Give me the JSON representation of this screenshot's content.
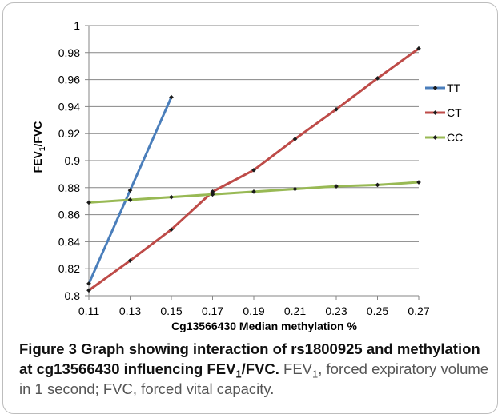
{
  "chart_data": {
    "type": "line",
    "title": "",
    "xlabel": "Cg13566430 Median methylation %",
    "ylabel": "FEV1/FVC",
    "ylabel_main": "FEV",
    "ylabel_sub": "1",
    "ylabel_tail": "/FVC",
    "x_ticks": [
      "0.11",
      "0.13",
      "0.15",
      "0.17",
      "0.19",
      "0.21",
      "0.23",
      "0.25",
      "0.27"
    ],
    "y_ticks": [
      "0.8",
      "0.82",
      "0.84",
      "0.86",
      "0.88",
      "0.9",
      "0.92",
      "0.94",
      "0.96",
      "0.98",
      "1"
    ],
    "xlim": [
      0.11,
      0.27
    ],
    "ylim": [
      0.8,
      1.0
    ],
    "grid": "horizontal",
    "legend": "right",
    "series": [
      {
        "name": "TT",
        "color": "#4a7ebb",
        "x": [
          0.11,
          0.13,
          0.15
        ],
        "y": [
          0.809,
          0.878,
          0.947
        ]
      },
      {
        "name": "CT",
        "color": "#be4b48",
        "x": [
          0.11,
          0.13,
          0.15,
          0.17,
          0.19,
          0.21,
          0.23,
          0.25,
          0.27
        ],
        "y": [
          0.804,
          0.826,
          0.849,
          0.877,
          0.893,
          0.916,
          0.938,
          0.961,
          0.983
        ]
      },
      {
        "name": "CC",
        "color": "#98b954",
        "x": [
          0.11,
          0.13,
          0.15,
          0.17,
          0.19,
          0.21,
          0.23,
          0.25,
          0.27
        ],
        "y": [
          0.869,
          0.871,
          0.873,
          0.875,
          0.877,
          0.879,
          0.881,
          0.882,
          0.884
        ]
      }
    ]
  },
  "caption": {
    "fig_title_1": "Figure 3 Graph showing interaction of rs1800925 and methylation at cg13566430 influencing FEV",
    "fig_title_sub": "1",
    "fig_title_2": "/FVC.",
    "desc_1": " FEV",
    "desc_sub": "1",
    "desc_2": ", forced expiratory volume in 1 second; FVC, forced vital capacity."
  }
}
